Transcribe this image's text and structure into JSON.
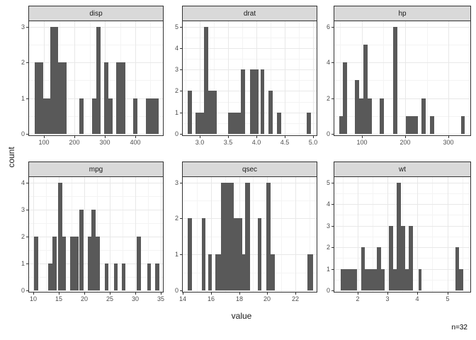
{
  "figure": {
    "y_axis_label": "count",
    "x_axis_label": "value",
    "annotation": "n=32",
    "colors": {
      "background": "#FFFFFF",
      "bar_fill": "#595959",
      "strip_bg": "#D9D9D9",
      "border": "#333333",
      "grid_major": "#E8E8E8",
      "grid_minor": "#F4F4F4",
      "tick_label": "#4D4D4D",
      "axis_title": "#1A1A1A",
      "annotation_color": "#000000"
    }
  },
  "chart_data": {
    "type": "bar",
    "subtype": "faceted_histogram",
    "ylabel": "count",
    "xlabel": "value",
    "sample_size_note": "n=32",
    "facet_labels": [
      "disp",
      "drat",
      "hp",
      "mpg",
      "qsec",
      "wt"
    ],
    "legend": "none",
    "grid": "on",
    "facets": [
      {
        "label": "disp",
        "xlim": [
          50,
          491
        ],
        "ytop": 3.15,
        "xticks": [
          100,
          200,
          300,
          400
        ],
        "xtick_labels": [
          "100",
          "200",
          "300",
          "400"
        ],
        "yticks": [
          0,
          1,
          2,
          3
        ],
        "ytick_labels": [
          "0",
          "1",
          "2",
          "3"
        ],
        "bars": [
          [
            69,
            96,
            2
          ],
          [
            96,
            119,
            1
          ],
          [
            119,
            146,
            3
          ],
          [
            146,
            173,
            2
          ],
          [
            215,
            229,
            1
          ],
          [
            258,
            272,
            1
          ],
          [
            272,
            286,
            3
          ],
          [
            297,
            312,
            2
          ],
          [
            312,
            325,
            1
          ],
          [
            338,
            367,
            2
          ],
          [
            392,
            406,
            1
          ],
          [
            436,
            477,
            1
          ]
        ]
      },
      {
        "label": "drat",
        "xlim": [
          2.7,
          5.06
        ],
        "ytop": 5.25,
        "xticks": [
          3.0,
          3.5,
          4.0,
          4.5,
          5.0
        ],
        "xtick_labels": [
          "3.0",
          "3.5",
          "4.0",
          "4.5",
          "5.0"
        ],
        "yticks": [
          0,
          1,
          2,
          3,
          4,
          5
        ],
        "ytick_labels": [
          "0",
          "1",
          "2",
          "3",
          "4",
          "5"
        ],
        "bars": [
          [
            2.79,
            2.86,
            2
          ],
          [
            2.93,
            3.08,
            1
          ],
          [
            3.08,
            3.15,
            5
          ],
          [
            3.15,
            3.3,
            2
          ],
          [
            3.5,
            3.73,
            1
          ],
          [
            3.73,
            3.8,
            3
          ],
          [
            3.88,
            4.03,
            3
          ],
          [
            4.07,
            4.14,
            3
          ],
          [
            4.21,
            4.29,
            2
          ],
          [
            4.36,
            4.43,
            1
          ],
          [
            4.89,
            4.96,
            1
          ]
        ]
      },
      {
        "label": "hp",
        "xlim": [
          37,
          350
        ],
        "ytop": 6.3,
        "xticks": [
          100,
          200,
          300
        ],
        "xtick_labels": [
          "100",
          "200",
          "300"
        ],
        "yticks": [
          0,
          2,
          4,
          6
        ],
        "ytick_labels": [
          "0",
          "2",
          "4",
          "6"
        ],
        "bars": [
          [
            48,
            57,
            1
          ],
          [
            57,
            67,
            4
          ],
          [
            85,
            94,
            3
          ],
          [
            94,
            104,
            2
          ],
          [
            104,
            113,
            5
          ],
          [
            113,
            123,
            2
          ],
          [
            141,
            151,
            2
          ],
          [
            172,
            182,
            6
          ],
          [
            201,
            230,
            1
          ],
          [
            238,
            248,
            2
          ],
          [
            257,
            267,
            1
          ],
          [
            328,
            337,
            1
          ]
        ]
      },
      {
        "label": "mpg",
        "xlim": [
          9.2,
          35.4
        ],
        "ytop": 4.2,
        "xticks": [
          10,
          15,
          20,
          25,
          30,
          35
        ],
        "xtick_labels": [
          "10",
          "15",
          "20",
          "25",
          "30",
          "35"
        ],
        "yticks": [
          0,
          1,
          2,
          3,
          4
        ],
        "ytick_labels": [
          "0",
          "1",
          "2",
          "3",
          "4"
        ],
        "bars": [
          [
            10.2,
            11.0,
            2
          ],
          [
            13.0,
            13.8,
            1
          ],
          [
            13.8,
            14.6,
            2
          ],
          [
            14.9,
            15.7,
            4
          ],
          [
            15.7,
            16.4,
            2
          ],
          [
            17.2,
            18.9,
            2
          ],
          [
            19.1,
            19.9,
            3
          ],
          [
            20.65,
            21.36,
            2
          ],
          [
            21.36,
            22.2,
            3
          ],
          [
            22.2,
            23.1,
            2
          ],
          [
            24.0,
            24.75,
            1
          ],
          [
            25.8,
            26.5,
            1
          ],
          [
            27.4,
            28.1,
            1
          ],
          [
            30.3,
            31.1,
            2
          ],
          [
            32.3,
            33.1,
            1
          ],
          [
            33.9,
            34.7,
            1
          ]
        ]
      },
      {
        "label": "qsec",
        "xlim": [
          14.0,
          23.5
        ],
        "ytop": 3.15,
        "xticks": [
          14,
          16,
          18,
          20,
          22
        ],
        "xtick_labels": [
          "14",
          "16",
          "18",
          "20",
          "22"
        ],
        "yticks": [
          0,
          1,
          2,
          3
        ],
        "ytick_labels": [
          "0",
          "1",
          "2",
          "3"
        ],
        "bars": [
          [
            14.36,
            14.64,
            2
          ],
          [
            15.34,
            15.62,
            2
          ],
          [
            15.82,
            16.06,
            1
          ],
          [
            16.3,
            16.7,
            1
          ],
          [
            16.7,
            17.6,
            3
          ],
          [
            17.6,
            18.23,
            2
          ],
          [
            18.23,
            18.43,
            1
          ],
          [
            18.43,
            18.79,
            3
          ],
          [
            19.33,
            19.59,
            2
          ],
          [
            19.93,
            20.23,
            3
          ],
          [
            20.23,
            20.53,
            1
          ],
          [
            22.84,
            23.26,
            1
          ]
        ]
      },
      {
        "label": "wt",
        "xlim": [
          1.22,
          5.77
        ],
        "ytop": 5.25,
        "xticks": [
          2,
          3,
          4,
          5
        ],
        "xtick_labels": [
          "2",
          "3",
          "4",
          "5"
        ],
        "yticks": [
          0,
          1,
          2,
          3,
          4,
          5
        ],
        "ytick_labels": [
          "0",
          "1",
          "2",
          "3",
          "4",
          "5"
        ],
        "bars": [
          [
            1.43,
            1.98,
            1
          ],
          [
            2.11,
            2.24,
            2
          ],
          [
            2.24,
            2.65,
            1
          ],
          [
            2.65,
            2.78,
            2
          ],
          [
            2.78,
            2.91,
            1
          ],
          [
            3.05,
            3.18,
            3
          ],
          [
            3.18,
            3.31,
            1
          ],
          [
            3.31,
            3.45,
            5
          ],
          [
            3.45,
            3.58,
            3
          ],
          [
            3.58,
            3.71,
            1
          ],
          [
            3.71,
            3.85,
            3
          ],
          [
            4.03,
            4.14,
            1
          ],
          [
            5.27,
            5.4,
            2
          ],
          [
            5.4,
            5.53,
            1
          ]
        ]
      }
    ]
  }
}
